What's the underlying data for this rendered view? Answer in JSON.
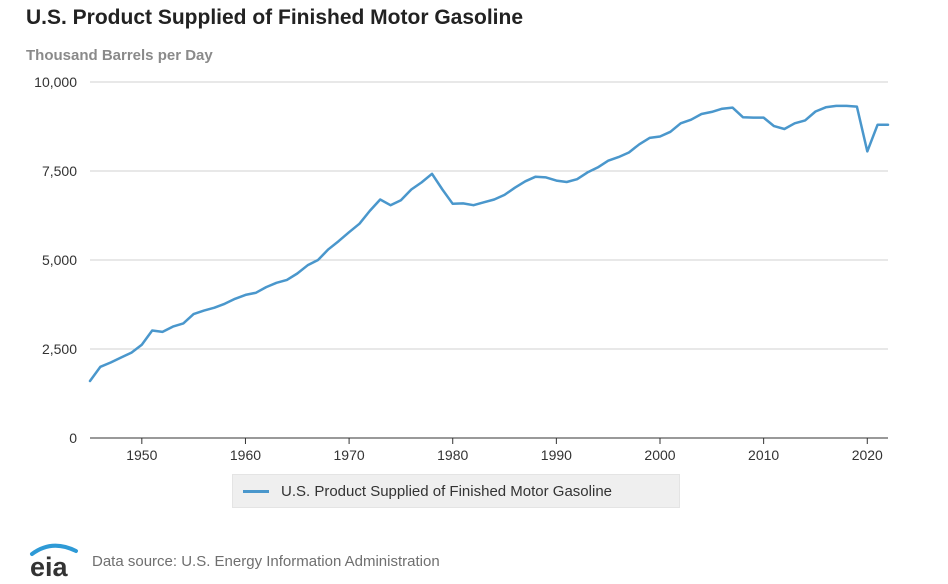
{
  "title": "U.S. Product Supplied of Finished Motor Gasoline",
  "subtitle": "Thousand Barrels per Day",
  "source": "Data source: U.S. Energy Information Administration",
  "logo_text": "eia",
  "colors": {
    "line": "#4a97cc",
    "grid": "#d0d0d0",
    "axis": "#333333",
    "logo_arc": "#2e9ad6"
  },
  "chart_data": {
    "type": "line",
    "title": "U.S. Product Supplied of Finished Motor Gasoline",
    "ylabel": "Thousand Barrels per Day",
    "xlabel": "",
    "xlim": [
      1945,
      2022
    ],
    "ylim": [
      0,
      10000
    ],
    "y_ticks": [
      0,
      2500,
      5000,
      7500,
      10000
    ],
    "y_tick_labels": [
      "0",
      "2,500",
      "5,000",
      "7,500",
      "10,000"
    ],
    "x_ticks": [
      1950,
      1960,
      1970,
      1980,
      1990,
      2000,
      2010,
      2020
    ],
    "x_tick_labels": [
      "1950",
      "1960",
      "1970",
      "1980",
      "1990",
      "2000",
      "2010",
      "2020"
    ],
    "grid": true,
    "legend": "bottom",
    "series": [
      {
        "name": "U.S. Product Supplied of Finished Motor Gasoline",
        "x": [
          1945,
          1946,
          1947,
          1948,
          1949,
          1950,
          1951,
          1952,
          1953,
          1954,
          1955,
          1956,
          1957,
          1958,
          1959,
          1960,
          1961,
          1962,
          1963,
          1964,
          1965,
          1966,
          1967,
          1968,
          1969,
          1970,
          1971,
          1972,
          1973,
          1974,
          1975,
          1976,
          1977,
          1978,
          1979,
          1980,
          1981,
          1982,
          1983,
          1984,
          1985,
          1986,
          1987,
          1988,
          1989,
          1990,
          1991,
          1992,
          1993,
          1994,
          1995,
          1996,
          1997,
          1998,
          1999,
          2000,
          2001,
          2002,
          2003,
          2004,
          2005,
          2006,
          2007,
          2008,
          2009,
          2010,
          2011,
          2012,
          2013,
          2014,
          2015,
          2016,
          2017,
          2018,
          2019,
          2020,
          2021,
          2022
        ],
        "values": [
          1600,
          2000,
          2120,
          2260,
          2400,
          2620,
          3020,
          2980,
          3130,
          3220,
          3480,
          3580,
          3660,
          3770,
          3910,
          4020,
          4080,
          4240,
          4360,
          4440,
          4620,
          4850,
          5000,
          5300,
          5530,
          5780,
          6020,
          6380,
          6700,
          6540,
          6680,
          6980,
          7180,
          7420,
          6980,
          6580,
          6590,
          6540,
          6620,
          6700,
          6830,
          7030,
          7210,
          7340,
          7320,
          7230,
          7190,
          7270,
          7460,
          7600,
          7790,
          7890,
          8020,
          8250,
          8430,
          8470,
          8600,
          8840,
          8940,
          9100,
          9160,
          9250,
          9280,
          9010,
          9000,
          9000,
          8760,
          8680,
          8840,
          8920,
          9170,
          9290,
          9330,
          9330,
          9310,
          8050,
          8800,
          8800
        ]
      }
    ]
  }
}
